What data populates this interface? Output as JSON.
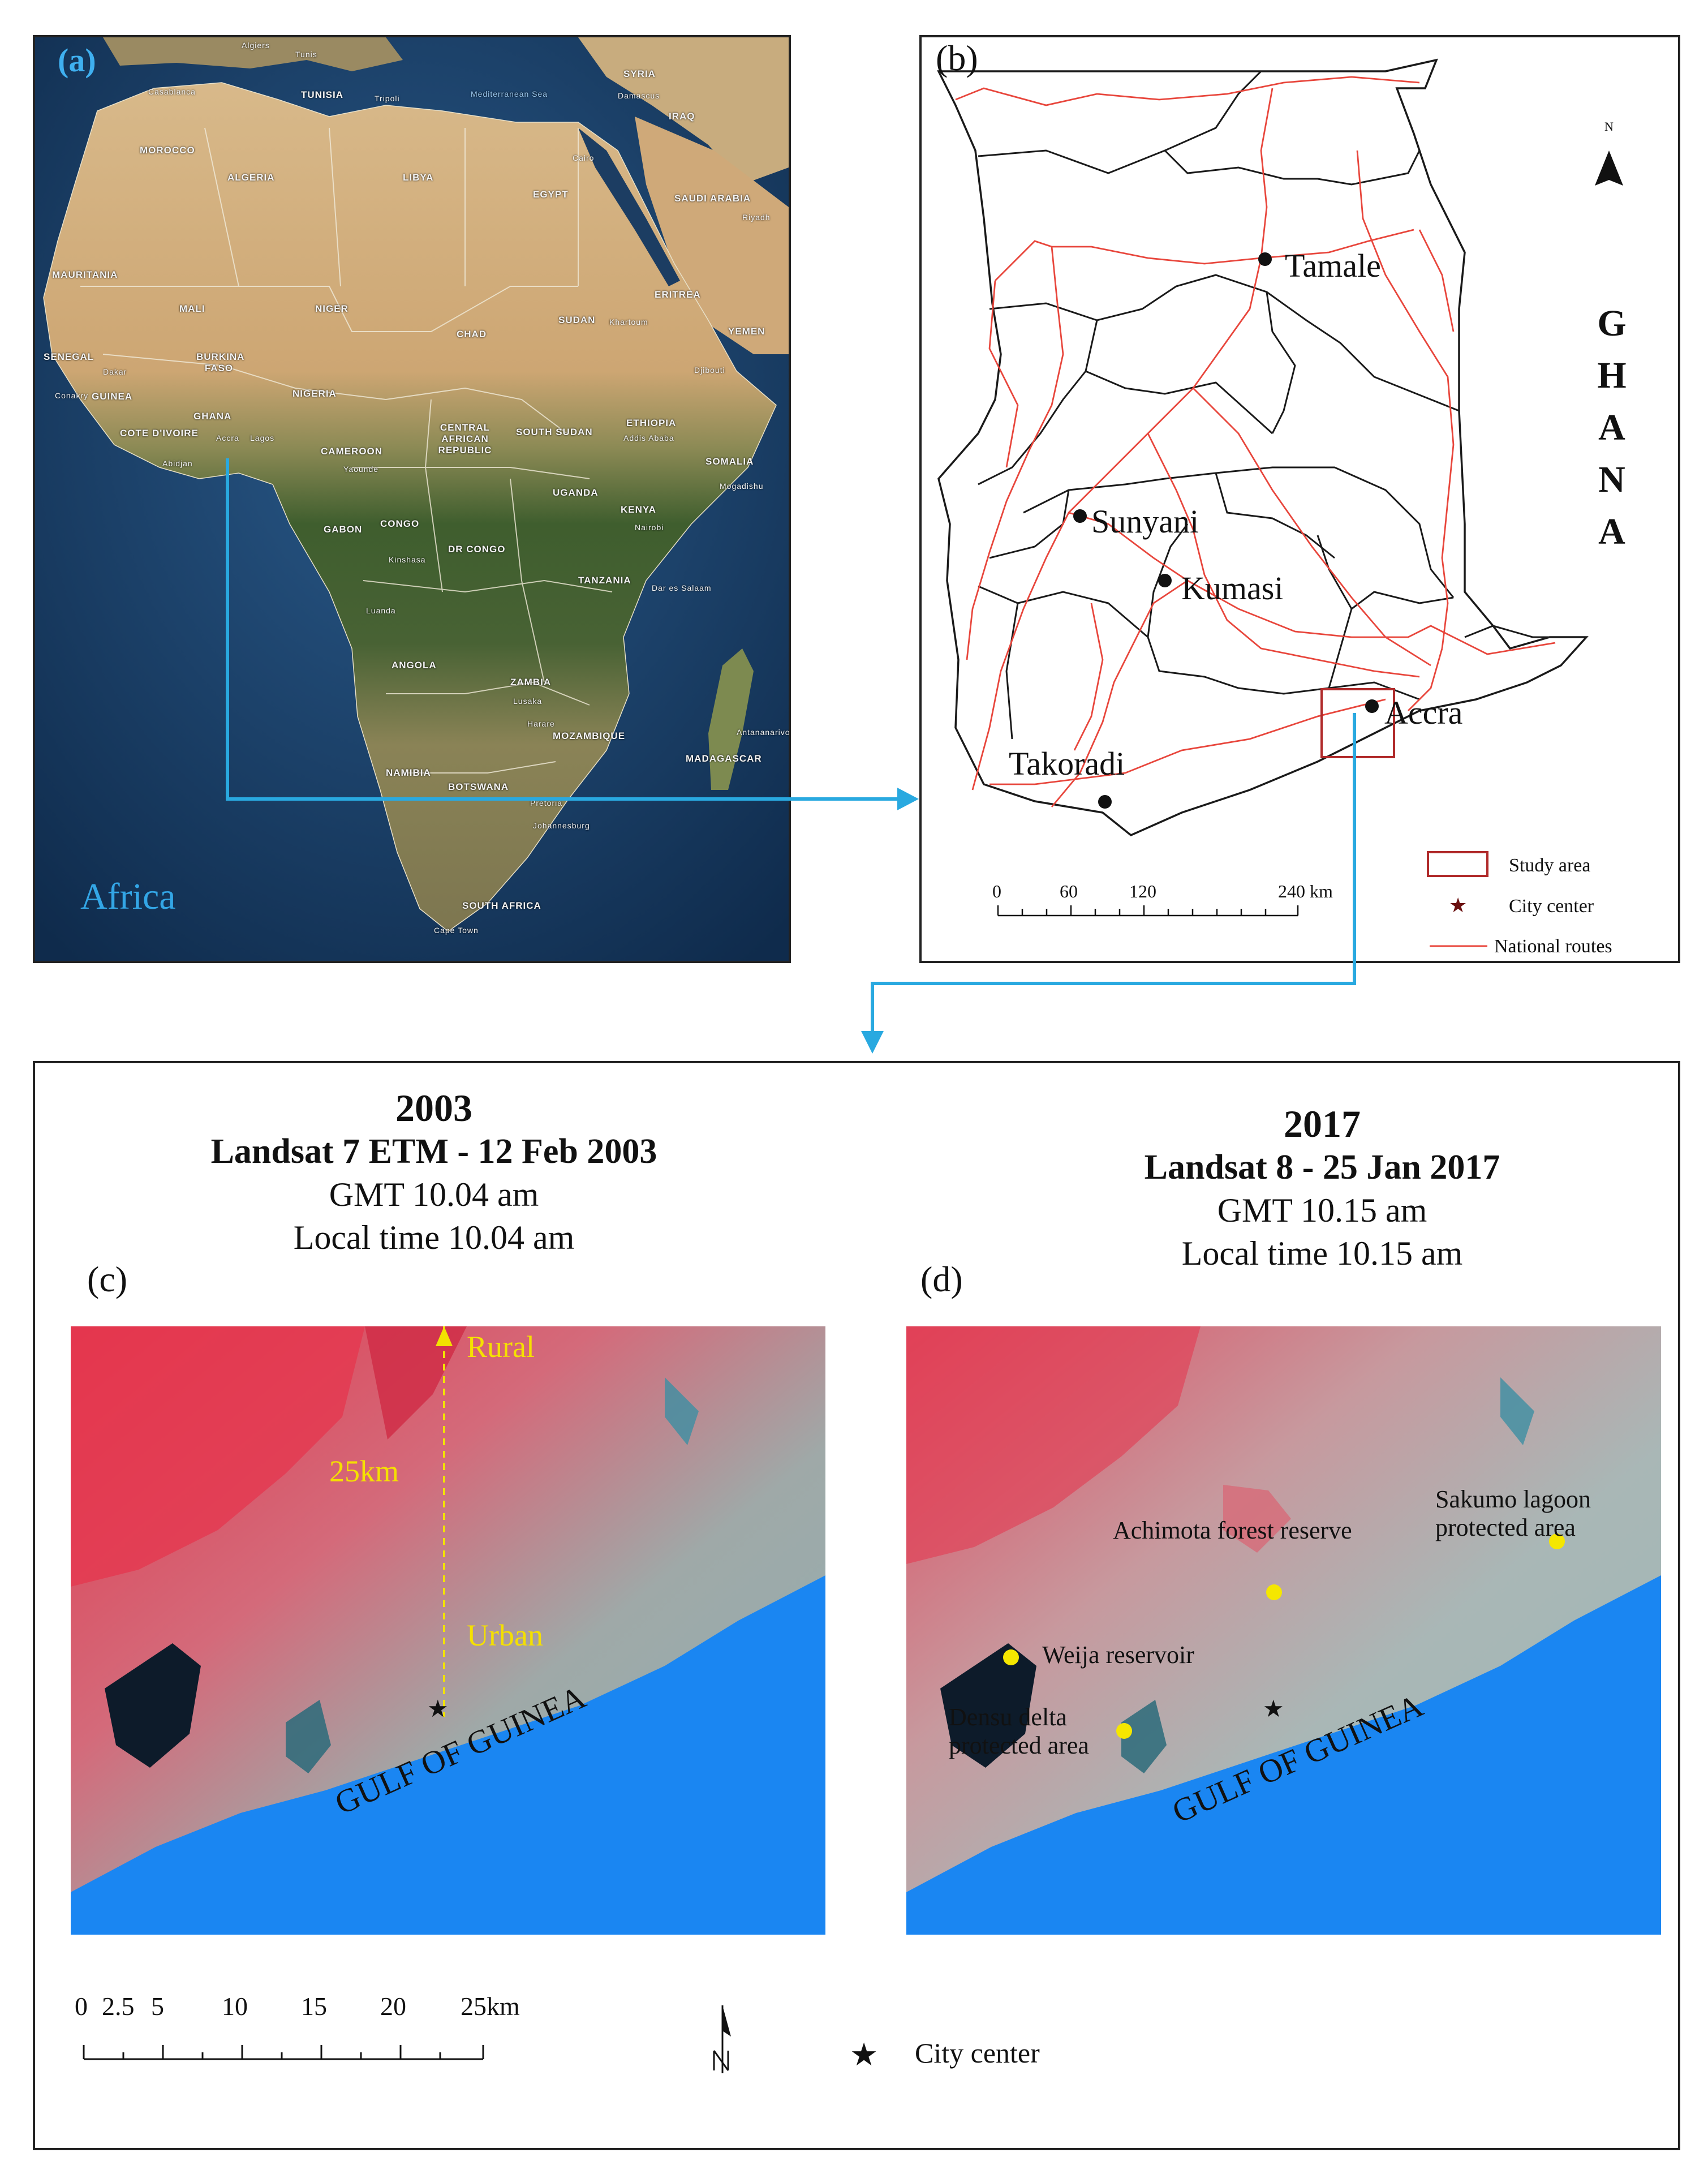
{
  "panel_a": {
    "label": "(a)",
    "continent": "Africa",
    "place_labels": [
      "Algiers",
      "Tunis",
      "TUNISIA",
      "Tripoli",
      "Casablanca",
      "MOROCCO",
      "Mediterranean Sea",
      "SYRIA",
      "IRAQ",
      "Damascus",
      "Cairo",
      "EGYPT",
      "SAUDI ARABIA",
      "Riyadh",
      "ALGERIA",
      "LIBYA",
      "MAURITANIA",
      "MALI",
      "NIGER",
      "CHAD",
      "SUDAN",
      "Khartoum",
      "YEMEN",
      "ERITREA",
      "SENEGAL",
      "Dakar",
      "BURKINA FASO",
      "GUINEA",
      "Conakry",
      "COTE D'IVOIRE",
      "GHANA",
      "Accra",
      "Lagos",
      "NIGERIA",
      "Abidjan",
      "CAMEROON",
      "Yaounde",
      "CENTRAL AFRICAN REPUBLIC",
      "SOUTH SUDAN",
      "ETHIOPIA",
      "Addis Ababa",
      "Djibouti",
      "SOMALIA",
      "Mogadishu",
      "GABON",
      "CONGO",
      "DR CONGO",
      "UGANDA",
      "KENYA",
      "Nairobi",
      "Kinshasa",
      "TANZANIA",
      "Dar es Salaam",
      "Luanda",
      "ANGOLA",
      "ZAMBIA",
      "Lusaka",
      "Harare",
      "MOZAMBIQUE",
      "MADAGASCAR",
      "Antananarivo",
      "NAMIBIA",
      "BOTSWANA",
      "Pretoria",
      "Johannesburg",
      "SOUTH AFRICA",
      "Cape Town"
    ]
  },
  "panel_b": {
    "label": "(b)",
    "country_letters": [
      "G",
      "H",
      "A",
      "N",
      "A"
    ],
    "north_label": "N",
    "cities": [
      "Tamale",
      "Sunyani",
      "Kumasi",
      "Accra",
      "Takoradi"
    ],
    "scale_ticks": [
      "0",
      "60",
      "120",
      "240 km"
    ],
    "legend": {
      "study_area": "Study area",
      "city_center": "City center",
      "national_routes": "National routes"
    },
    "colors": {
      "routes": "#e8463c",
      "study_area": "#b02a2a",
      "city_center": "#6b1010",
      "arrow": "#29a9e0"
    }
  },
  "panel_c": {
    "label": "(c)",
    "year": "2003",
    "sensor": "Landsat 7 ETM - 12 Feb 2003",
    "gmt": "GMT 10.04 am",
    "local": "Local time 10.04 am",
    "rural": "Rural",
    "urban": "Urban",
    "transect": "25km",
    "sea": "GULF OF GUINEA"
  },
  "panel_d": {
    "label": "(d)",
    "year": "2017",
    "sensor": "Landsat 8 - 25 Jan 2017",
    "gmt": "GMT 10.15 am",
    "local": "Local time 10.15 am",
    "sea": "GULF OF GUINEA",
    "annotations": [
      "Achimota forest reserve",
      "Sakumo lagoon",
      "protected area",
      "Weija reservoir",
      "Densu delta",
      "protected area"
    ]
  },
  "bottom_legend": {
    "scale_ticks": [
      "0",
      "2.5",
      "5",
      "10",
      "15",
      "20",
      "25km"
    ],
    "north_label": "N",
    "city_center": "City center"
  }
}
